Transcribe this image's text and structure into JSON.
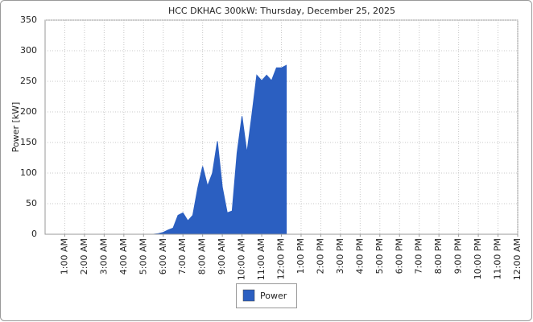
{
  "chart_data": {
    "type": "area",
    "title": "HCC DKHAC 300kW: Thursday, December 25, 2025",
    "y_label": "Power [kW]",
    "series": [
      {
        "name": "Power",
        "color": "#2b5fc1",
        "x": [
          5.5,
          5.75,
          6.0,
          6.25,
          6.5,
          6.75,
          7.0,
          7.25,
          7.5,
          7.75,
          8.0,
          8.25,
          8.5,
          8.75,
          9.0,
          9.25,
          9.5,
          9.75,
          10.0,
          10.25,
          10.5,
          10.75,
          11.0,
          11.25,
          11.5,
          11.75,
          12.0,
          12.25
        ],
        "values": [
          0,
          1,
          3,
          7,
          10,
          31,
          35,
          22,
          31,
          75,
          111,
          79,
          100,
          152,
          77,
          35,
          38,
          133,
          193,
          133,
          195,
          260,
          251,
          260,
          251,
          272,
          272,
          276
        ]
      }
    ],
    "xlim": [
      0,
      24
    ],
    "xticks": [
      {
        "value": 1,
        "label": "1:00 AM"
      },
      {
        "value": 2,
        "label": "2:00 AM"
      },
      {
        "value": 3,
        "label": "3:00 AM"
      },
      {
        "value": 4,
        "label": "4:00 AM"
      },
      {
        "value": 5,
        "label": "5:00 AM"
      },
      {
        "value": 6,
        "label": "6:00 AM"
      },
      {
        "value": 7,
        "label": "7:00 AM"
      },
      {
        "value": 8,
        "label": "8:00 AM"
      },
      {
        "value": 9,
        "label": "9:00 AM"
      },
      {
        "value": 10,
        "label": "10:00 AM"
      },
      {
        "value": 11,
        "label": "11:00 AM"
      },
      {
        "value": 12,
        "label": "12:00 PM"
      },
      {
        "value": 13,
        "label": "1:00 PM"
      },
      {
        "value": 14,
        "label": "2:00 PM"
      },
      {
        "value": 15,
        "label": "3:00 PM"
      },
      {
        "value": 16,
        "label": "4:00 PM"
      },
      {
        "value": 17,
        "label": "5:00 PM"
      },
      {
        "value": 18,
        "label": "6:00 PM"
      },
      {
        "value": 19,
        "label": "7:00 PM"
      },
      {
        "value": 20,
        "label": "8:00 PM"
      },
      {
        "value": 21,
        "label": "9:00 PM"
      },
      {
        "value": 22,
        "label": "10:00 PM"
      },
      {
        "value": 23,
        "label": "11:00 PM"
      },
      {
        "value": 24,
        "label": "12:00 AM"
      }
    ],
    "ylim": [
      0,
      350
    ],
    "yticks": [
      0,
      50,
      100,
      150,
      200,
      250,
      300,
      350
    ],
    "grid": true
  }
}
